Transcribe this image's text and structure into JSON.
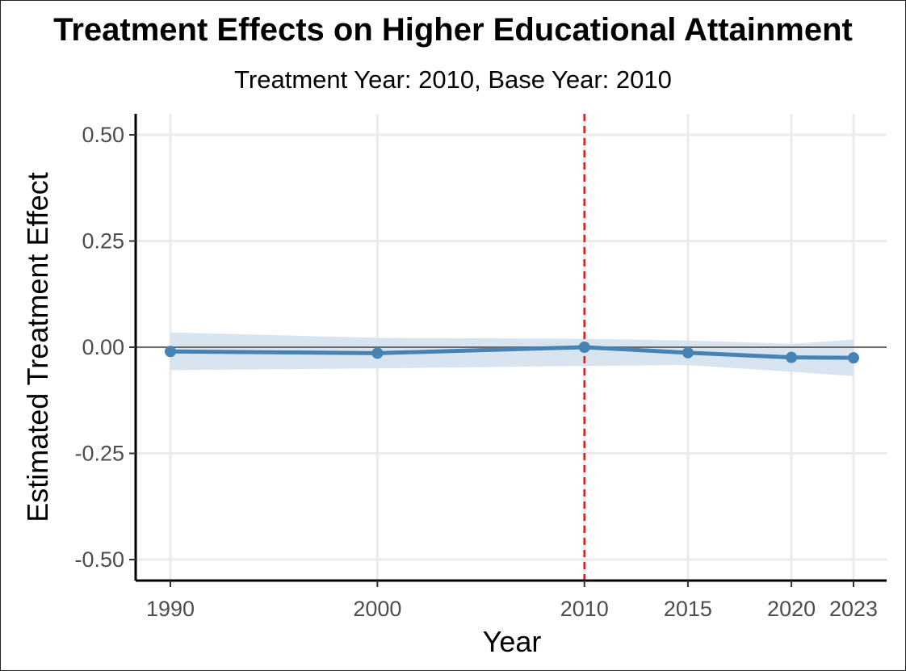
{
  "chart_data": {
    "type": "line",
    "title": "Treatment Effects on Higher Educational Attainment",
    "subtitle": "Treatment Year: 2010, Base Year: 2010",
    "xlabel": "Year",
    "ylabel": "Estimated Treatment Effect",
    "xlim": [
      1990,
      2023
    ],
    "ylim": [
      -0.5,
      0.5
    ],
    "x_ticks": [
      1990,
      2000,
      2010,
      2015,
      2020,
      2023
    ],
    "x_tick_labels": [
      "1990",
      "2000",
      "2010",
      "2015",
      "2020",
      "2023"
    ],
    "y_ticks": [
      -0.5,
      -0.25,
      0.0,
      0.25,
      0.5
    ],
    "y_tick_labels": [
      "-0.50",
      "-0.25",
      "0.00",
      "0.25",
      "0.50"
    ],
    "grid": true,
    "reference_hline": 0.0,
    "reference_vline": 2010,
    "series": [
      {
        "x": [
          1990,
          2000,
          2010,
          2015,
          2020,
          2023
        ],
        "values": [
          -0.01,
          -0.014,
          0.0,
          -0.013,
          -0.024,
          -0.025
        ],
        "ci_lower": [
          -0.054,
          -0.05,
          -0.044,
          -0.042,
          -0.058,
          -0.068
        ],
        "ci_upper": [
          0.035,
          0.022,
          0.02,
          0.016,
          0.008,
          0.018
        ],
        "color": "#4682b4",
        "band_color": "#d6e4f0"
      }
    ],
    "hline_color": "#6b6b6b",
    "vline_color": "#d62020"
  }
}
